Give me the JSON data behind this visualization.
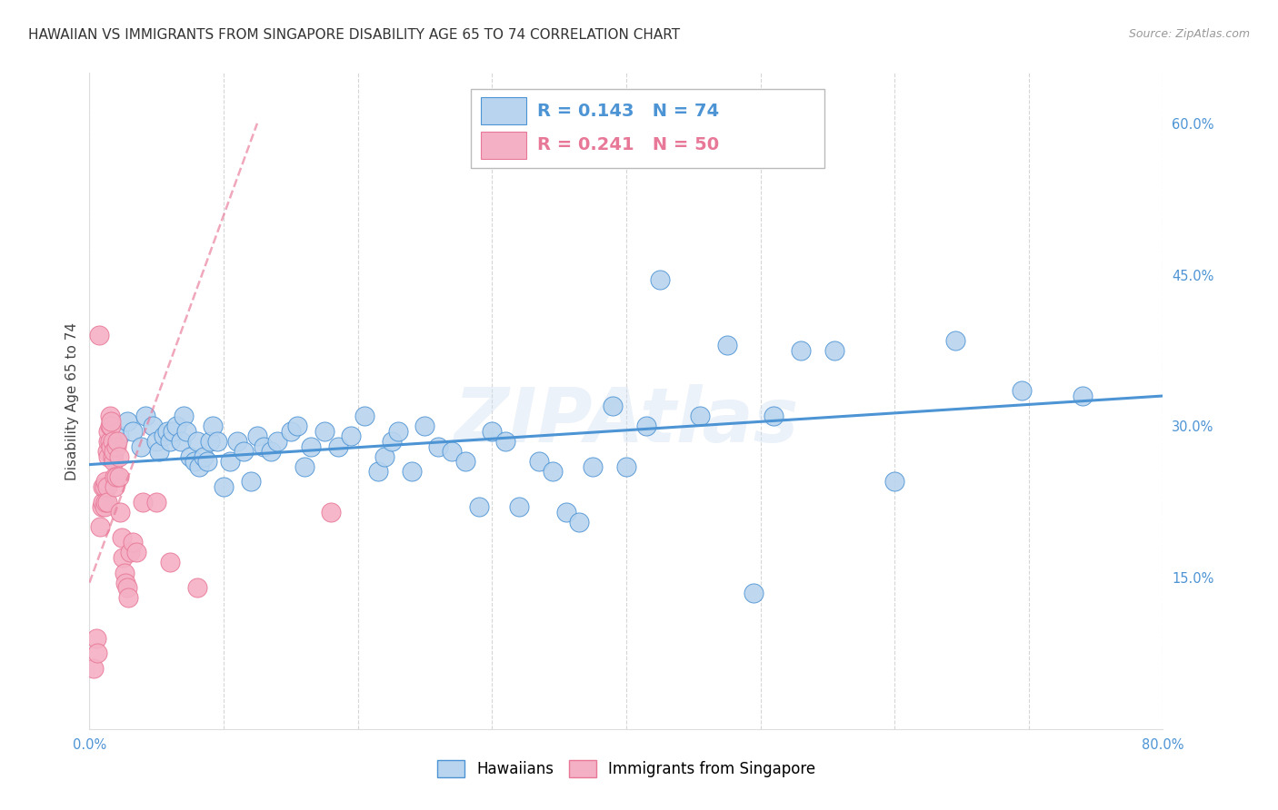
{
  "title": "HAWAIIAN VS IMMIGRANTS FROM SINGAPORE DISABILITY AGE 65 TO 74 CORRELATION CHART",
  "source": "Source: ZipAtlas.com",
  "ylabel": "Disability Age 65 to 74",
  "xlim": [
    0.0,
    0.8
  ],
  "ylim": [
    0.0,
    0.65
  ],
  "xtick_positions": [
    0.0,
    0.1,
    0.2,
    0.3,
    0.4,
    0.5,
    0.6,
    0.7,
    0.8
  ],
  "xticklabels": [
    "0.0%",
    "",
    "",
    "",
    "",
    "",
    "",
    "",
    "80.0%"
  ],
  "ytick_positions": [
    0.15,
    0.3,
    0.45,
    0.6
  ],
  "ytick_labels": [
    "15.0%",
    "30.0%",
    "45.0%",
    "60.0%"
  ],
  "R_blue": "0.143",
  "N_blue": "74",
  "R_pink": "0.241",
  "N_pink": "50",
  "label_blue": "Hawaiians",
  "label_pink": "Immigrants from Singapore",
  "blue_scatter_x": [
    0.022,
    0.028,
    0.032,
    0.038,
    0.042,
    0.047,
    0.05,
    0.052,
    0.055,
    0.058,
    0.06,
    0.062,
    0.065,
    0.068,
    0.07,
    0.072,
    0.075,
    0.078,
    0.08,
    0.082,
    0.085,
    0.088,
    0.09,
    0.092,
    0.095,
    0.1,
    0.105,
    0.11,
    0.115,
    0.12,
    0.125,
    0.13,
    0.135,
    0.14,
    0.15,
    0.155,
    0.16,
    0.165,
    0.175,
    0.185,
    0.195,
    0.205,
    0.215,
    0.22,
    0.225,
    0.23,
    0.24,
    0.25,
    0.26,
    0.27,
    0.28,
    0.29,
    0.3,
    0.31,
    0.32,
    0.335,
    0.345,
    0.355,
    0.365,
    0.375,
    0.39,
    0.4,
    0.415,
    0.425,
    0.455,
    0.475,
    0.495,
    0.51,
    0.53,
    0.555,
    0.6,
    0.645,
    0.695,
    0.74
  ],
  "blue_scatter_y": [
    0.29,
    0.305,
    0.295,
    0.28,
    0.31,
    0.3,
    0.285,
    0.275,
    0.29,
    0.295,
    0.285,
    0.295,
    0.3,
    0.285,
    0.31,
    0.295,
    0.27,
    0.265,
    0.285,
    0.26,
    0.27,
    0.265,
    0.285,
    0.3,
    0.285,
    0.24,
    0.265,
    0.285,
    0.275,
    0.245,
    0.29,
    0.28,
    0.275,
    0.285,
    0.295,
    0.3,
    0.26,
    0.28,
    0.295,
    0.28,
    0.29,
    0.31,
    0.255,
    0.27,
    0.285,
    0.295,
    0.255,
    0.3,
    0.28,
    0.275,
    0.265,
    0.22,
    0.295,
    0.285,
    0.22,
    0.265,
    0.255,
    0.215,
    0.205,
    0.26,
    0.32,
    0.26,
    0.3,
    0.445,
    0.31,
    0.38,
    0.135,
    0.31,
    0.375,
    0.375,
    0.245,
    0.385,
    0.335,
    0.33
  ],
  "pink_scatter_x": [
    0.003,
    0.005,
    0.006,
    0.007,
    0.008,
    0.009,
    0.01,
    0.01,
    0.011,
    0.011,
    0.012,
    0.012,
    0.013,
    0.013,
    0.013,
    0.014,
    0.014,
    0.014,
    0.015,
    0.015,
    0.015,
    0.016,
    0.016,
    0.016,
    0.017,
    0.017,
    0.018,
    0.018,
    0.019,
    0.019,
    0.02,
    0.02,
    0.021,
    0.022,
    0.022,
    0.023,
    0.024,
    0.025,
    0.026,
    0.027,
    0.028,
    0.029,
    0.03,
    0.032,
    0.035,
    0.04,
    0.05,
    0.06,
    0.08,
    0.18
  ],
  "pink_scatter_y": [
    0.06,
    0.09,
    0.075,
    0.39,
    0.2,
    0.22,
    0.225,
    0.24,
    0.22,
    0.24,
    0.225,
    0.245,
    0.24,
    0.225,
    0.275,
    0.27,
    0.285,
    0.295,
    0.285,
    0.3,
    0.31,
    0.28,
    0.3,
    0.305,
    0.27,
    0.285,
    0.265,
    0.275,
    0.25,
    0.24,
    0.25,
    0.28,
    0.285,
    0.27,
    0.25,
    0.215,
    0.19,
    0.17,
    0.155,
    0.145,
    0.14,
    0.13,
    0.175,
    0.185,
    0.175,
    0.225,
    0.225,
    0.165,
    0.14,
    0.215
  ],
  "blue_line_x": [
    0.0,
    0.8
  ],
  "blue_line_y": [
    0.262,
    0.33
  ],
  "pink_line_x": [
    0.0,
    0.125
  ],
  "pink_line_y": [
    0.145,
    0.6
  ],
  "blue_color": "#4d94d5",
  "pink_color": "#e87898",
  "blue_scatter_facecolor": "#b8d4ee",
  "pink_scatter_facecolor": "#f4b0c4",
  "title_fontsize": 11,
  "axis_label_fontsize": 11,
  "tick_fontsize": 10.5,
  "legend_fontsize": 14,
  "background_color": "#ffffff",
  "grid_color": "#cccccc",
  "watermark": "ZIPAtlas",
  "watermark_color": "#d0dff0",
  "watermark_alpha": 0.4
}
